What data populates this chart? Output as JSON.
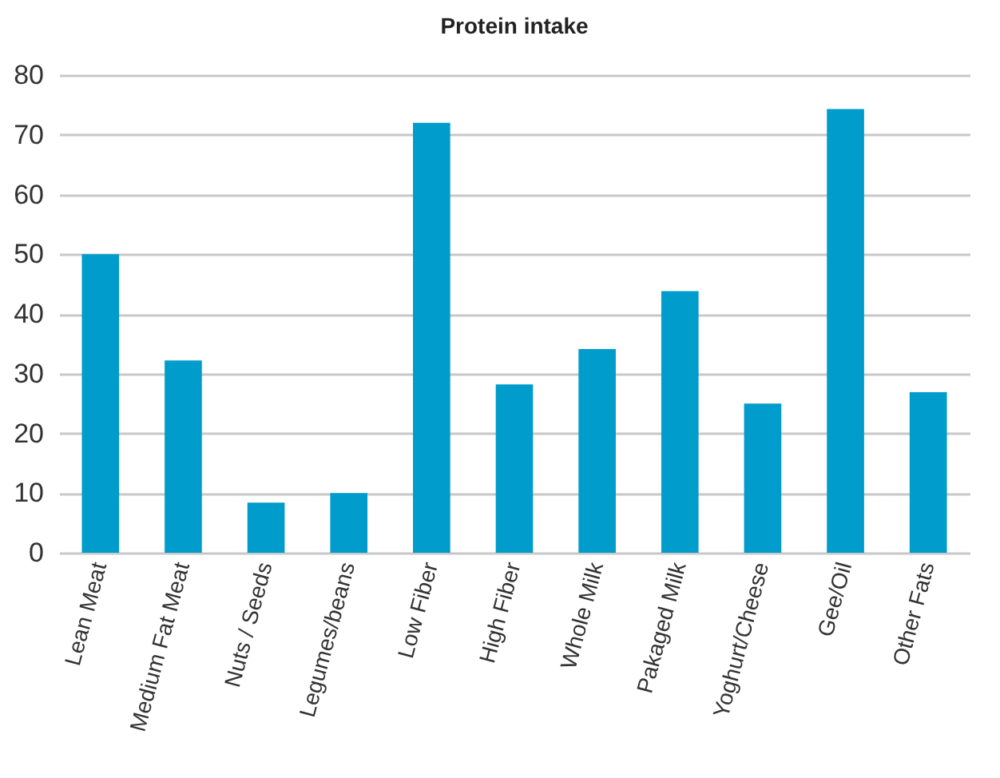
{
  "chart_data": {
    "type": "bar",
    "title": "Protein intake",
    "categories": [
      "Lean Meat",
      "Medium Fat Meat",
      "Nuts / Seeds",
      "Legumes/beans",
      "Low Fiber",
      "High Fiber",
      "Whole Milk",
      "Pakaged Milk",
      "Yoghurt/Cheese",
      "Gee/Oil",
      "Other Fats"
    ],
    "values": [
      50,
      32.2,
      8.4,
      10,
      72,
      28.2,
      34.1,
      43.8,
      25,
      74.3,
      26.9
    ],
    "color": "#009ccb",
    "ylim": [
      0,
      80
    ],
    "yticks": [
      0,
      10,
      20,
      30,
      40,
      50,
      60,
      70,
      80
    ],
    "grid": "y"
  }
}
